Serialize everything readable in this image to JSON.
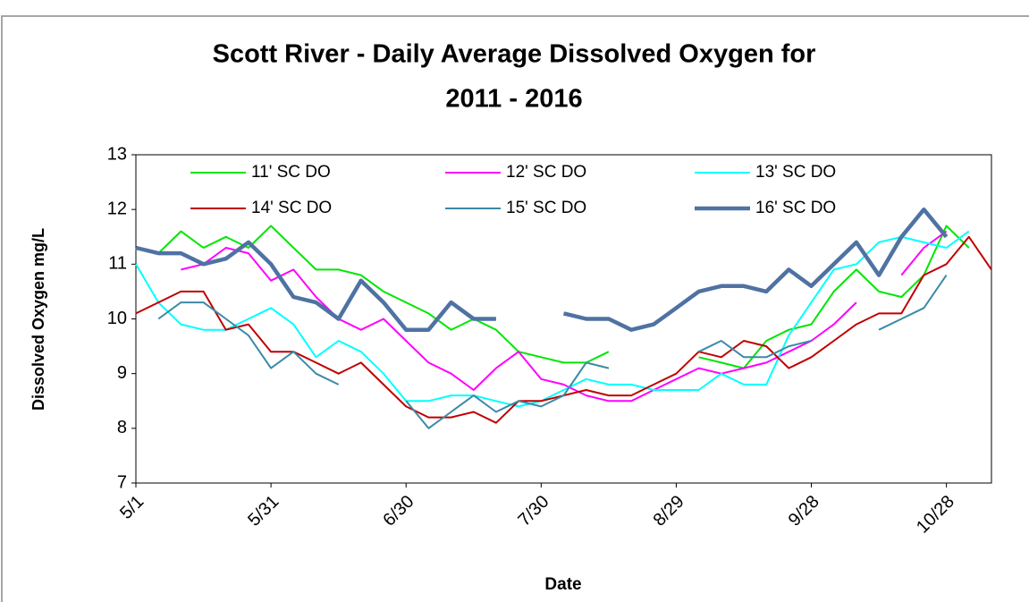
{
  "chart_data": {
    "type": "line",
    "title": "Scott River - Daily Average Dissolved Oxygen for",
    "subtitle": "2011 - 2016",
    "x_label": "Date",
    "y_label": "Dissolved Oxygen mg/L",
    "categories": [
      "5/1",
      null,
      null,
      null,
      null,
      null,
      "5/31",
      null,
      null,
      null,
      null,
      null,
      "6/30",
      null,
      null,
      null,
      null,
      null,
      "7/30",
      null,
      null,
      null,
      null,
      null,
      "8/29",
      null,
      null,
      null,
      null,
      null,
      "9/28",
      null,
      null,
      null,
      null,
      null,
      "10/28",
      null,
      null
    ],
    "ylim": [
      7,
      13
    ],
    "yticks": [
      7,
      8,
      9,
      10,
      11,
      12,
      13
    ],
    "grid": false,
    "series": [
      {
        "name": "11' SC DO",
        "color": "#00e600",
        "linewidth": 2,
        "values": [
          null,
          11.2,
          11.6,
          11.3,
          11.5,
          11.3,
          11.7,
          11.3,
          10.9,
          10.9,
          10.8,
          10.5,
          10.3,
          10.1,
          9.8,
          10.0,
          9.8,
          9.4,
          9.3,
          9.2,
          9.2,
          9.4,
          null,
          null,
          null,
          9.3,
          9.2,
          9.1,
          9.6,
          9.8,
          9.9,
          10.5,
          10.9,
          10.5,
          10.4,
          10.8,
          11.7,
          11.3,
          null
        ]
      },
      {
        "name": "12' SC DO",
        "color": "#ff00ff",
        "linewidth": 2,
        "values": [
          null,
          null,
          10.9,
          11.0,
          11.3,
          11.2,
          10.7,
          10.9,
          10.4,
          10.0,
          9.8,
          10.0,
          9.6,
          9.2,
          9.0,
          8.7,
          9.1,
          9.4,
          8.9,
          8.8,
          8.6,
          8.5,
          8.5,
          8.7,
          8.9,
          9.1,
          9.0,
          9.1,
          9.2,
          9.4,
          9.6,
          9.9,
          10.3,
          null,
          10.8,
          11.3,
          11.6,
          null,
          null
        ]
      },
      {
        "name": "13' SC DO",
        "color": "#00ffff",
        "linewidth": 2,
        "values": [
          11.0,
          10.3,
          9.9,
          9.8,
          9.8,
          10.0,
          10.2,
          9.9,
          9.3,
          9.6,
          9.4,
          9.0,
          8.5,
          8.5,
          8.6,
          8.6,
          8.5,
          8.4,
          8.5,
          8.7,
          8.9,
          8.8,
          8.8,
          8.7,
          8.7,
          8.7,
          9.0,
          8.8,
          8.8,
          9.7,
          10.3,
          10.9,
          11.0,
          11.4,
          11.5,
          11.4,
          11.3,
          11.6,
          null
        ]
      },
      {
        "name": "14' SC DO",
        "color": "#c00000",
        "linewidth": 2,
        "values": [
          10.1,
          10.3,
          10.5,
          10.5,
          9.8,
          9.9,
          9.4,
          9.4,
          9.2,
          9.0,
          9.2,
          8.8,
          8.4,
          8.2,
          8.2,
          8.3,
          8.1,
          8.5,
          8.5,
          8.6,
          8.7,
          8.6,
          8.6,
          8.8,
          9.0,
          9.4,
          9.3,
          9.6,
          9.5,
          9.1,
          9.3,
          9.6,
          9.9,
          10.1,
          10.1,
          10.8,
          11.0,
          11.5,
          10.9
        ]
      },
      {
        "name": "15' SC DO",
        "color": "#3b8aa6",
        "linewidth": 2,
        "values": [
          null,
          10.0,
          10.3,
          10.3,
          10.0,
          9.7,
          9.1,
          9.4,
          9.0,
          8.8,
          null,
          null,
          8.5,
          8.0,
          8.3,
          8.6,
          8.3,
          8.5,
          8.4,
          8.6,
          9.2,
          9.1,
          null,
          null,
          null,
          9.4,
          9.6,
          9.3,
          9.3,
          9.5,
          9.6,
          null,
          null,
          9.8,
          10.0,
          10.2,
          10.8,
          null,
          null
        ]
      },
      {
        "name": "16' SC DO",
        "color": "#4f72a3",
        "linewidth": 4.5,
        "values": [
          11.3,
          11.2,
          11.2,
          11.0,
          11.1,
          11.4,
          11.0,
          10.4,
          10.3,
          10.0,
          10.7,
          10.3,
          9.8,
          9.8,
          10.3,
          10.0,
          10.0,
          null,
          null,
          10.1,
          10.0,
          10.0,
          9.8,
          9.9,
          10.2,
          10.5,
          10.6,
          10.6,
          10.5,
          10.9,
          10.6,
          11.0,
          11.4,
          10.8,
          11.5,
          12.0,
          11.5,
          null,
          null
        ]
      }
    ]
  }
}
